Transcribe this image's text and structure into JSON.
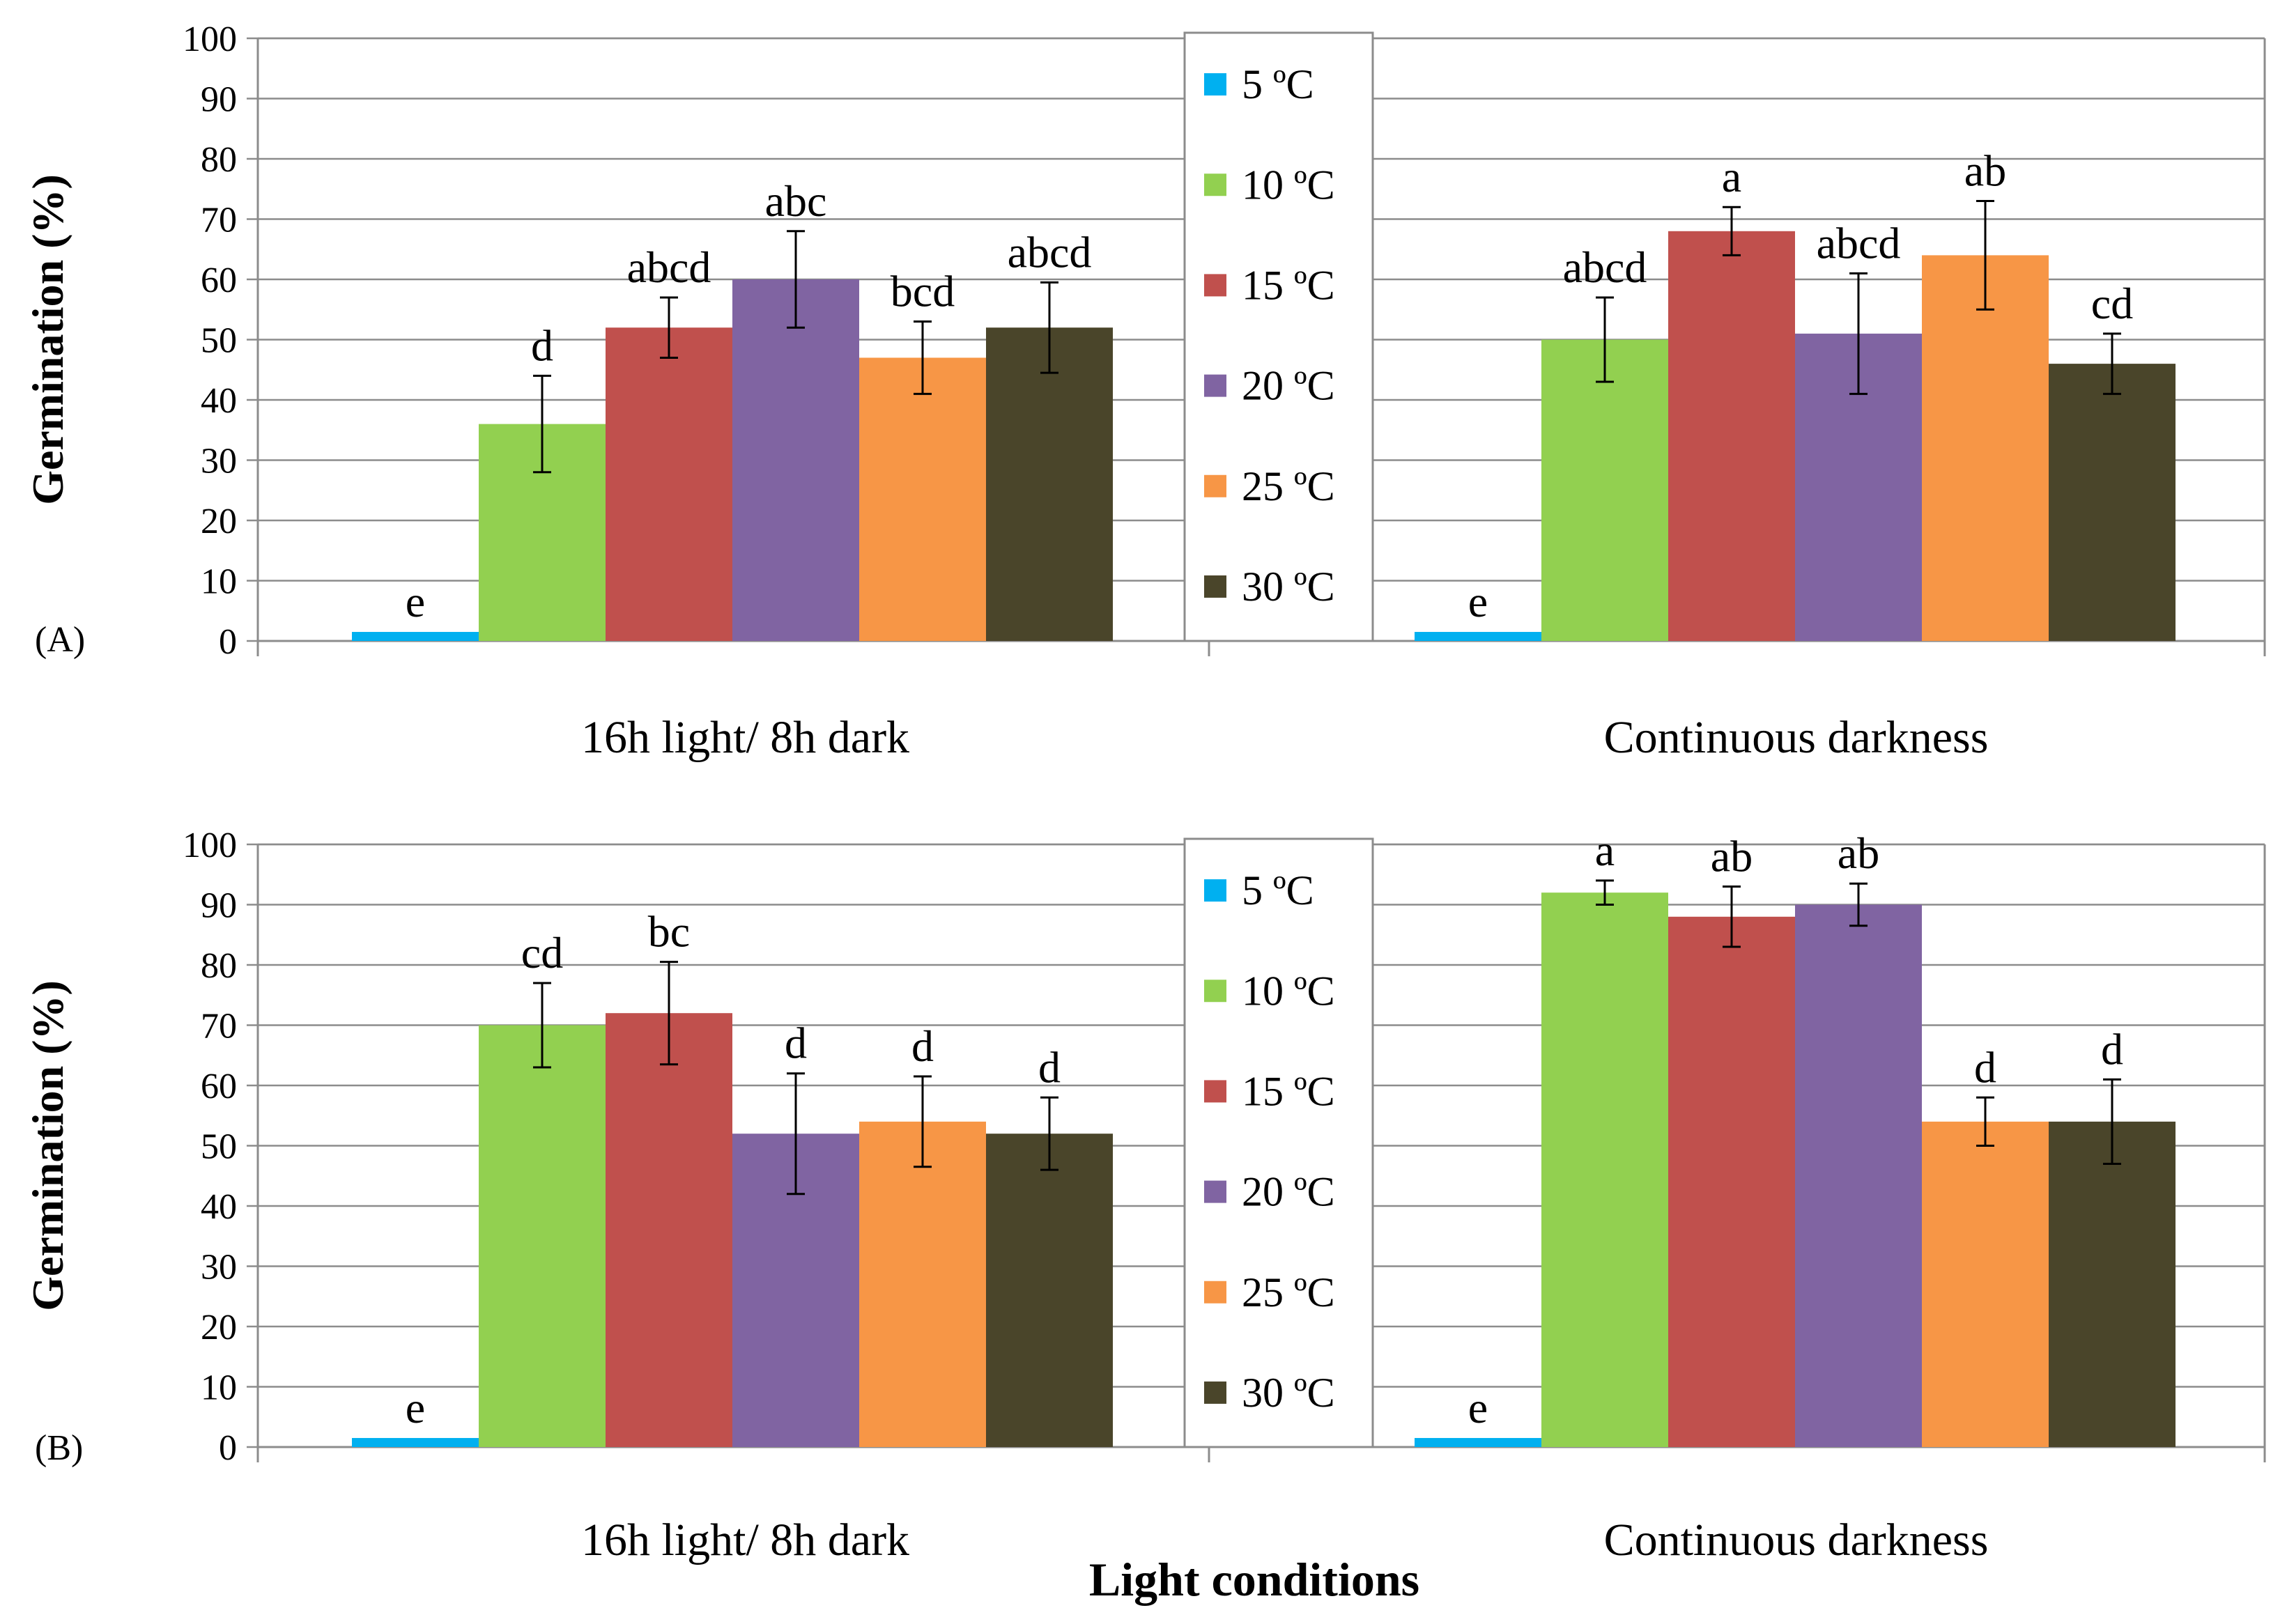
{
  "figure": {
    "xlabel": "Light conditions"
  },
  "chart_data": [
    {
      "type": "bar",
      "panel_label": "(A)",
      "title": "",
      "xlabel": "",
      "ylabel": "Germination (%)",
      "ylim": [
        0,
        100
      ],
      "yticks": [
        "0",
        "10",
        "20",
        "30",
        "40",
        "50",
        "60",
        "70",
        "80",
        "90",
        "100"
      ],
      "grid": true,
      "legend_position": "center",
      "categories": [
        "16h light/ 8h dark",
        "Continuous darkness"
      ],
      "series": [
        {
          "name": "5 ºC",
          "color": "#00b0f0",
          "values": [
            1.5,
            1.5
          ],
          "errors": [
            0,
            0
          ],
          "labels": [
            "e",
            "e"
          ]
        },
        {
          "name": "10 ºC",
          "color": "#92d050",
          "values": [
            36,
            50
          ],
          "errors": [
            8,
            7
          ],
          "labels": [
            "d",
            "abcd"
          ]
        },
        {
          "name": "15 ºC",
          "color": "#c0504d",
          "values": [
            52,
            68
          ],
          "errors": [
            5,
            4
          ],
          "labels": [
            "abcd",
            "a"
          ]
        },
        {
          "name": "20 ºC",
          "color": "#8064a2",
          "values": [
            60,
            51
          ],
          "errors": [
            8,
            10
          ],
          "labels": [
            "abc",
            "abcd"
          ]
        },
        {
          "name": "25 ºC",
          "color": "#f79646",
          "values": [
            47,
            64
          ],
          "errors": [
            6,
            9
          ],
          "labels": [
            "bcd",
            "ab"
          ]
        },
        {
          "name": "30 ºC",
          "color": "#4a452a",
          "values": [
            52,
            46
          ],
          "errors": [
            7.5,
            5
          ],
          "labels": [
            "abcd",
            "cd"
          ]
        }
      ]
    },
    {
      "type": "bar",
      "panel_label": "(B)",
      "title": "",
      "xlabel": "",
      "ylabel": "Germination (%)",
      "ylim": [
        0,
        100
      ],
      "yticks": [
        "0",
        "10",
        "20",
        "30",
        "40",
        "50",
        "60",
        "70",
        "80",
        "90",
        "100"
      ],
      "grid": true,
      "legend_position": "center",
      "categories": [
        "16h light/ 8h dark",
        "Continuous darkness"
      ],
      "series": [
        {
          "name": "5 ºC",
          "color": "#00b0f0",
          "values": [
            1.5,
            1.5
          ],
          "errors": [
            0,
            0
          ],
          "labels": [
            "e",
            "e"
          ]
        },
        {
          "name": "10 ºC",
          "color": "#92d050",
          "values": [
            70,
            92
          ],
          "errors": [
            7,
            2
          ],
          "labels": [
            "cd",
            "a"
          ]
        },
        {
          "name": "15 ºC",
          "color": "#c0504d",
          "values": [
            72,
            88
          ],
          "errors": [
            8.5,
            5
          ],
          "labels": [
            "bc",
            "ab"
          ]
        },
        {
          "name": "20 ºC",
          "color": "#8064a2",
          "values": [
            52,
            90
          ],
          "errors": [
            10,
            3.5
          ],
          "labels": [
            "d",
            "ab"
          ]
        },
        {
          "name": "25 ºC",
          "color": "#f79646",
          "values": [
            54,
            54
          ],
          "errors": [
            7.5,
            4
          ],
          "labels": [
            "d",
            "d"
          ]
        },
        {
          "name": "30 ºC",
          "color": "#4a452a",
          "values": [
            52,
            54
          ],
          "errors": [
            6,
            7
          ],
          "labels": [
            "d",
            "d"
          ]
        }
      ]
    }
  ]
}
